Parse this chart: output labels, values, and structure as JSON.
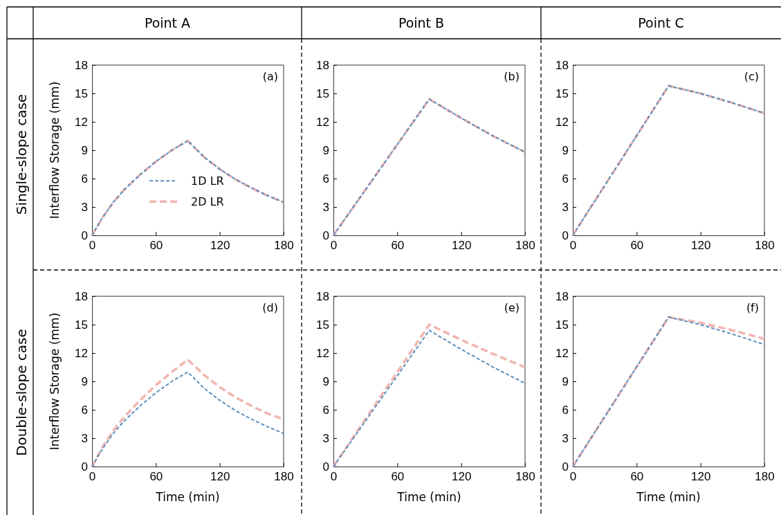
{
  "chart_data": [
    {
      "type": "line",
      "title": "Point A",
      "ylabel": "Interflow Storage (mm)",
      "annotations": [
        "Single-slope case",
        "(a)"
      ],
      "xlim": [
        0,
        180
      ],
      "xticks": [
        0,
        60,
        120,
        180
      ],
      "ylim": [
        0,
        18
      ],
      "yticks": [
        0,
        3,
        6,
        9,
        12,
        15,
        18
      ],
      "legend": "bottom",
      "line_style": "dashed",
      "series": [
        {
          "name": "1D LR",
          "color": "#5b8fbd",
          "x": [
            0,
            10,
            20,
            30,
            45,
            60,
            75,
            90,
            105,
            120,
            135,
            150,
            165,
            180
          ],
          "values": [
            0,
            1.9,
            3.5,
            4.8,
            6.4,
            7.8,
            9.0,
            10.0,
            8.3,
            7.0,
            5.9,
            5.0,
            4.2,
            3.5
          ]
        },
        {
          "name": "2D LR",
          "color": "#f2b5b0",
          "x": [
            0,
            10,
            20,
            30,
            45,
            60,
            75,
            90,
            105,
            120,
            135,
            150,
            165,
            180
          ],
          "values": [
            0,
            1.9,
            3.5,
            4.8,
            6.4,
            7.8,
            9.0,
            10.0,
            8.3,
            7.0,
            5.9,
            5.0,
            4.2,
            3.5
          ]
        }
      ]
    },
    {
      "type": "line",
      "title": "Point B",
      "annotations": [
        "(b)"
      ],
      "xlim": [
        0,
        180
      ],
      "xticks": [
        0,
        60,
        120,
        180
      ],
      "ylim": [
        0,
        18
      ],
      "yticks": [
        0,
        3,
        6,
        9,
        12,
        15,
        18
      ],
      "line_style": "dashed",
      "series": [
        {
          "color": "#5b8fbd",
          "x": [
            0,
            90,
            120,
            150,
            180
          ],
          "values": [
            0,
            14.4,
            12.4,
            10.5,
            8.8
          ]
        },
        {
          "color": "#f2b5b0",
          "x": [
            0,
            90,
            120,
            150,
            180
          ],
          "values": [
            0,
            14.4,
            12.4,
            10.5,
            8.8
          ]
        }
      ]
    },
    {
      "type": "line",
      "title": "Point C",
      "annotations": [
        "(c)"
      ],
      "xlim": [
        0,
        180
      ],
      "xticks": [
        0,
        60,
        120,
        180
      ],
      "ylim": [
        0,
        18
      ],
      "yticks": [
        0,
        3,
        6,
        9,
        12,
        15,
        18
      ],
      "line_style": "dashed",
      "series": [
        {
          "color": "#5b8fbd",
          "x": [
            0,
            90,
            120,
            150,
            180
          ],
          "values": [
            0,
            15.8,
            15.0,
            14.0,
            12.9
          ]
        },
        {
          "color": "#f2b5b0",
          "x": [
            0,
            90,
            120,
            150,
            180
          ],
          "values": [
            0,
            15.8,
            15.0,
            14.0,
            12.9
          ]
        }
      ]
    },
    {
      "type": "line",
      "xlabel": "Time (min)",
      "ylabel": "Interflow Storage (mm)",
      "annotations": [
        "Double-slope case",
        "(d)"
      ],
      "xlim": [
        0,
        180
      ],
      "xticks": [
        0,
        60,
        120,
        180
      ],
      "ylim": [
        0,
        18
      ],
      "yticks": [
        0,
        3,
        6,
        9,
        12,
        15,
        18
      ],
      "line_style": "dashed",
      "series": [
        {
          "color": "#5b8fbd",
          "x": [
            0,
            10,
            20,
            30,
            45,
            60,
            75,
            90,
            105,
            120,
            135,
            150,
            165,
            180
          ],
          "values": [
            0,
            1.9,
            3.5,
            4.8,
            6.4,
            7.8,
            9.0,
            10.0,
            8.3,
            7.0,
            5.9,
            5.0,
            4.2,
            3.5
          ]
        },
        {
          "color": "#f2b5b0",
          "x": [
            0,
            10,
            20,
            30,
            45,
            60,
            75,
            90,
            105,
            120,
            135,
            150,
            165,
            180
          ],
          "values": [
            0,
            2.1,
            3.8,
            5.2,
            7.0,
            8.6,
            10.0,
            11.3,
            9.7,
            8.4,
            7.3,
            6.4,
            5.6,
            5.0
          ]
        }
      ]
    },
    {
      "type": "line",
      "xlabel": "Time (min)",
      "annotations": [
        "(e)"
      ],
      "xlim": [
        0,
        180
      ],
      "xticks": [
        0,
        60,
        120,
        180
      ],
      "ylim": [
        0,
        18
      ],
      "yticks": [
        0,
        3,
        6,
        9,
        12,
        15,
        18
      ],
      "line_style": "dashed",
      "series": [
        {
          "color": "#5b8fbd",
          "x": [
            0,
            90,
            120,
            150,
            180
          ],
          "values": [
            0,
            14.4,
            12.4,
            10.5,
            8.8
          ]
        },
        {
          "color": "#f2b5b0",
          "x": [
            0,
            90,
            120,
            150,
            180
          ],
          "values": [
            0,
            15.0,
            13.4,
            11.9,
            10.5
          ]
        }
      ]
    },
    {
      "type": "line",
      "xlabel": "Time (min)",
      "annotations": [
        "(f)"
      ],
      "xlim": [
        0,
        180
      ],
      "xticks": [
        0,
        60,
        120,
        180
      ],
      "ylim": [
        0,
        18
      ],
      "yticks": [
        0,
        3,
        6,
        9,
        12,
        15,
        18
      ],
      "line_style": "dashed",
      "series": [
        {
          "color": "#5b8fbd",
          "x": [
            0,
            90,
            120,
            150,
            180
          ],
          "values": [
            0,
            15.8,
            15.0,
            14.0,
            12.9
          ]
        },
        {
          "color": "#f2b5b0",
          "x": [
            0,
            90,
            120,
            150,
            180
          ],
          "values": [
            0,
            15.8,
            15.2,
            14.4,
            13.5
          ]
        }
      ]
    }
  ]
}
